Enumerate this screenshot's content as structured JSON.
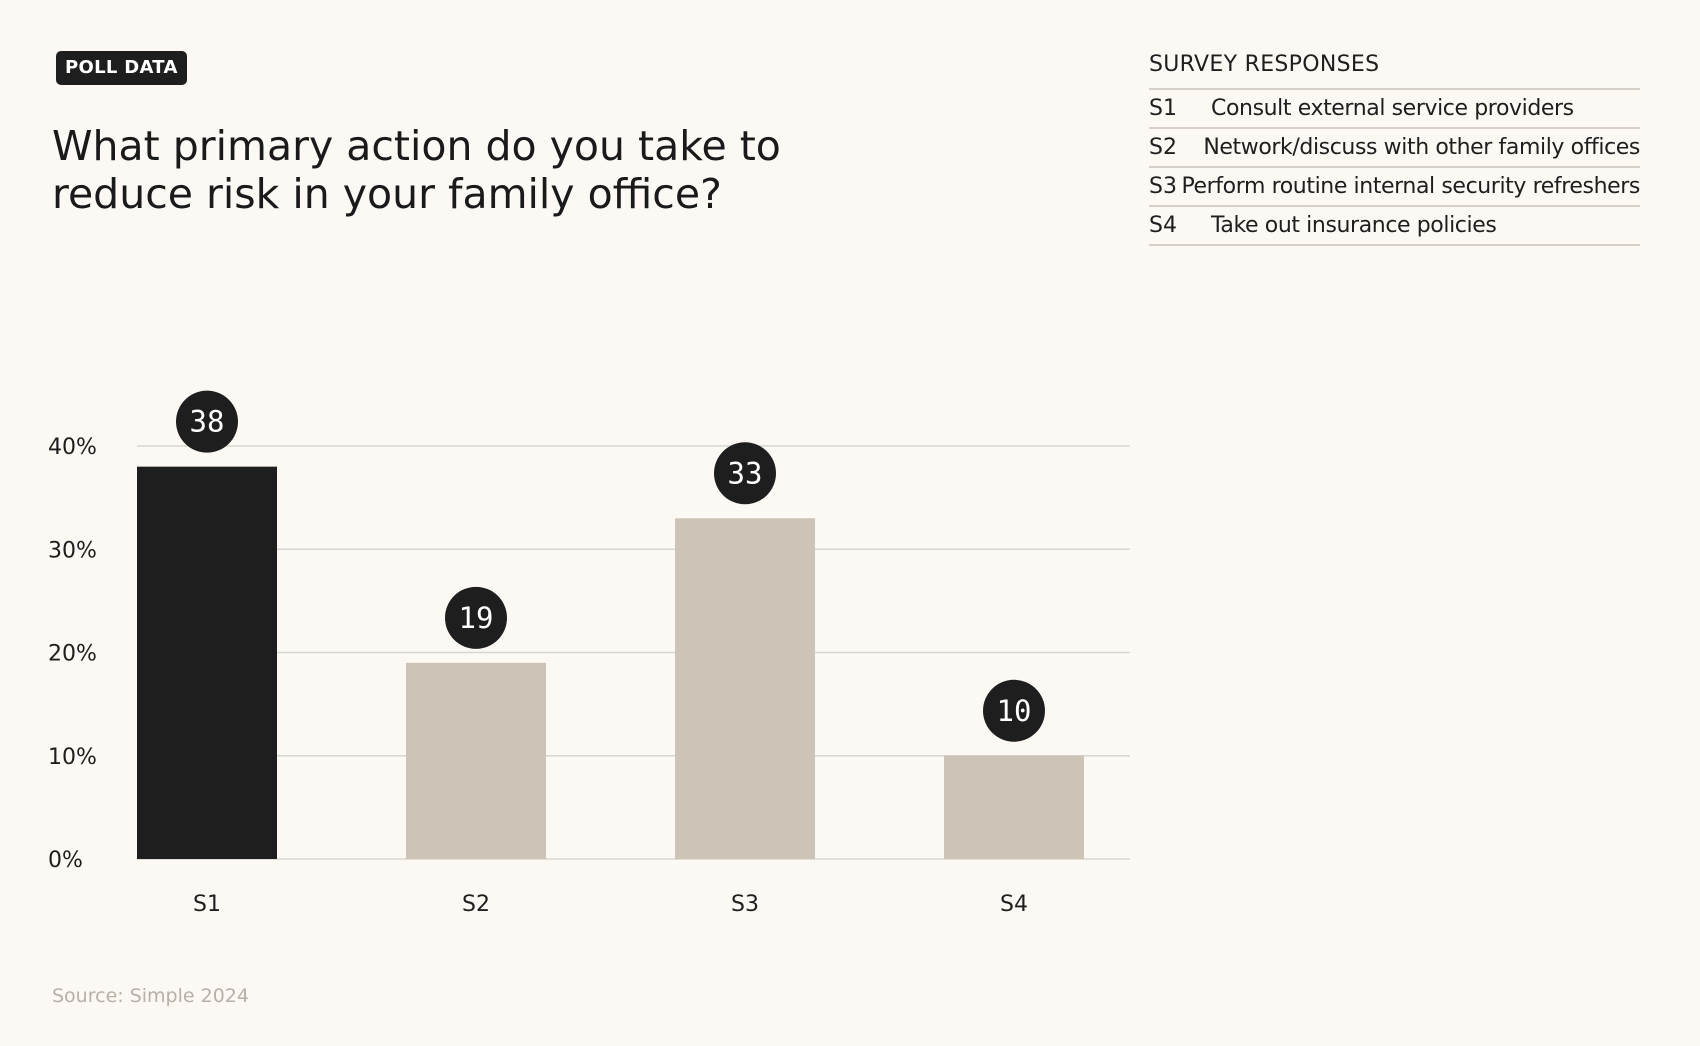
{
  "badge": "POLL DATA",
  "title": "What primary action do you take to reduce risk in your family office?",
  "legend": {
    "title": "SURVEY RESPONSES",
    "items": [
      {
        "key": "S1",
        "label": "Consult external service providers"
      },
      {
        "key": "S2",
        "label": "Network/discuss with other family offices"
      },
      {
        "key": "S3",
        "label": "Perform routine internal security refreshers"
      },
      {
        "key": "S4",
        "label": "Take out insurance policies"
      }
    ]
  },
  "source": "Source: Simple 2024",
  "colors": {
    "highlight_bar": "#1e1e1e",
    "bar": "#cdc3b7",
    "label_bubble": "#1e1e1e",
    "label_text": "#ffffff",
    "grid": "#d9d5cf",
    "background": "#fcf9f4"
  },
  "chart_data": {
    "type": "bar",
    "categories": [
      "S1",
      "S2",
      "S3",
      "S4"
    ],
    "values": [
      38,
      19,
      33,
      10
    ],
    "data_labels": [
      "38",
      "19",
      "33",
      "10"
    ],
    "highlight_category": "S1",
    "ylim": [
      0,
      40
    ],
    "yticks": [
      0,
      10,
      20,
      30,
      40
    ],
    "ytick_labels": [
      "0%",
      "10%",
      "20%",
      "30%",
      "40%"
    ],
    "grid": true
  }
}
